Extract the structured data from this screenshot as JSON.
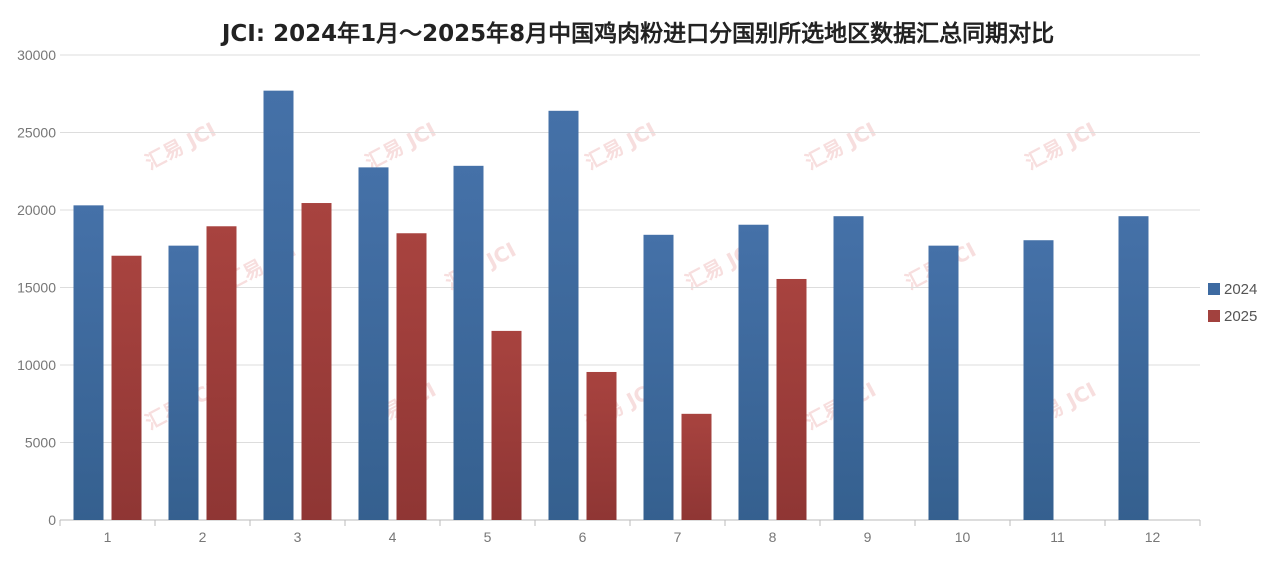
{
  "chart_data": {
    "type": "bar",
    "title": "JCI: 2024年1月～2025年8月中国鸡肉粉进口分国别所选地区数据汇总同期对比",
    "categories": [
      "1",
      "2",
      "3",
      "4",
      "5",
      "6",
      "7",
      "8",
      "9",
      "10",
      "11",
      "12"
    ],
    "series": [
      {
        "name": "2024",
        "color": "#3d6aa1",
        "values": [
          20300,
          17700,
          27700,
          22750,
          22850,
          26400,
          18400,
          19050,
          19600,
          17700,
          18050,
          19600
        ]
      },
      {
        "name": "2025",
        "color": "#a2413e",
        "values": [
          17050,
          18950,
          20450,
          18500,
          12200,
          9550,
          6850,
          15550,
          null,
          null,
          null,
          null
        ]
      }
    ],
    "y_ticks": [
      "0",
      "5000",
      "10000",
      "15000",
      "20000",
      "25000",
      "30000"
    ],
    "ylim": [
      0,
      30000
    ],
    "grid": true,
    "legend_position": "right",
    "xlabel": "",
    "ylabel": ""
  },
  "watermark": {
    "text": "汇易 JCI"
  }
}
